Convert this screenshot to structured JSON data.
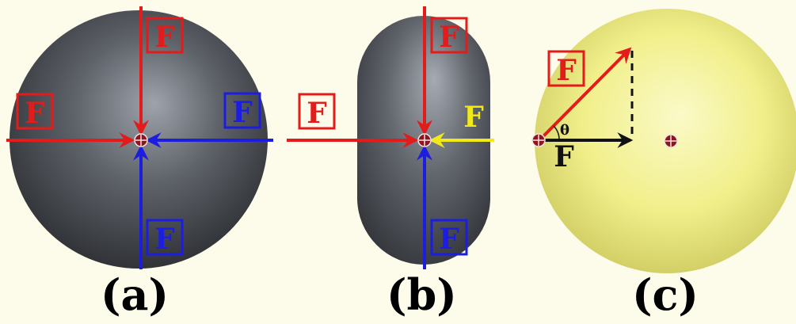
{
  "panels": [
    {
      "id": "a",
      "caption": "(a)",
      "shape": "gray-sphere",
      "forces": [
        {
          "direction": "down",
          "label": "F",
          "color": "#e21b1b"
        },
        {
          "direction": "right",
          "label": "F",
          "color": "#e21b1b"
        },
        {
          "direction": "left",
          "label": "F",
          "color": "#1d1de0"
        },
        {
          "direction": "up",
          "label": "F",
          "color": "#1d1de0"
        }
      ]
    },
    {
      "id": "b",
      "caption": "(b)",
      "shape": "gray-capsule",
      "forces": [
        {
          "direction": "down",
          "label": "F",
          "color": "#e21b1b"
        },
        {
          "direction": "right",
          "label": "F",
          "color": "#e21b1b"
        },
        {
          "direction": "left",
          "label": "F",
          "color": "#f2ea16"
        },
        {
          "direction": "up",
          "label": "F",
          "color": "#1d1de0"
        }
      ]
    },
    {
      "id": "c",
      "caption": "(c)",
      "shape": "yellow-sphere",
      "forces": [
        {
          "direction": "diagonal-up-right",
          "label": "F",
          "color": "#e21b1b"
        },
        {
          "direction": "right",
          "label": "F",
          "color": "#111111"
        }
      ],
      "angle_label": "θ"
    }
  ],
  "colors": {
    "background": "#fdfbe9",
    "sphere_gray": "#55585e",
    "sphere_yellow": "#f0ee80",
    "red": "#e21b1b",
    "blue": "#1d1de0",
    "yellow": "#f2ea16",
    "black": "#111111",
    "marker": "#8c1620"
  }
}
